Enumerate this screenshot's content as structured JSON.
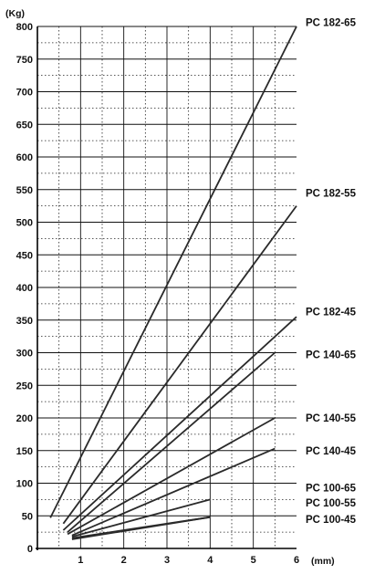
{
  "chart_data": {
    "type": "line",
    "y_unit_label": "(Kg)",
    "x_unit_label": "(mm)",
    "xlim": [
      0,
      6
    ],
    "ylim": [
      0,
      800
    ],
    "x_ticks": [
      1,
      2,
      3,
      4,
      5,
      6
    ],
    "y_ticks": [
      0,
      50,
      100,
      150,
      200,
      250,
      300,
      350,
      400,
      450,
      500,
      550,
      600,
      650,
      700,
      750,
      800
    ],
    "grid": true,
    "series": [
      {
        "name": "PC 182-65",
        "points": [
          [
            0.3,
            47
          ],
          [
            6.0,
            800
          ]
        ]
      },
      {
        "name": "PC 182-55",
        "points": [
          [
            0.6,
            38
          ],
          [
            6.0,
            525
          ]
        ]
      },
      {
        "name": "PC 182-45",
        "points": [
          [
            0.6,
            28
          ],
          [
            6.0,
            355
          ]
        ]
      },
      {
        "name": "PC 140-65",
        "points": [
          [
            0.7,
            25
          ],
          [
            5.5,
            300
          ]
        ]
      },
      {
        "name": "PC 140-55",
        "points": [
          [
            0.7,
            22
          ],
          [
            5.5,
            200
          ]
        ]
      },
      {
        "name": "PC 140-45",
        "points": [
          [
            0.8,
            20
          ],
          [
            5.5,
            153
          ]
        ]
      },
      {
        "name": "PC 100-65",
        "points": [
          [
            0.8,
            18
          ],
          [
            4.0,
            75
          ]
        ]
      },
      {
        "name": "PC 100-55",
        "points": [
          [
            0.8,
            16
          ],
          [
            4.0,
            48
          ]
        ]
      },
      {
        "name": "PC 100-45",
        "points": [
          [
            0.8,
            14
          ],
          [
            4.0,
            48
          ]
        ]
      }
    ],
    "series_labels": [
      {
        "name": "PC 182-65",
        "y": 806
      },
      {
        "name": "PC 182-55",
        "y": 545
      },
      {
        "name": "PC 182-45",
        "y": 363
      },
      {
        "name": "PC 140-65",
        "y": 297
      },
      {
        "name": "PC 140-55",
        "y": 200
      },
      {
        "name": "PC 140-45",
        "y": 150
      },
      {
        "name": "PC 100-65",
        "y": 93
      },
      {
        "name": "PC 100-55",
        "y": 70
      },
      {
        "name": "PC 100-45",
        "y": 45
      }
    ]
  }
}
